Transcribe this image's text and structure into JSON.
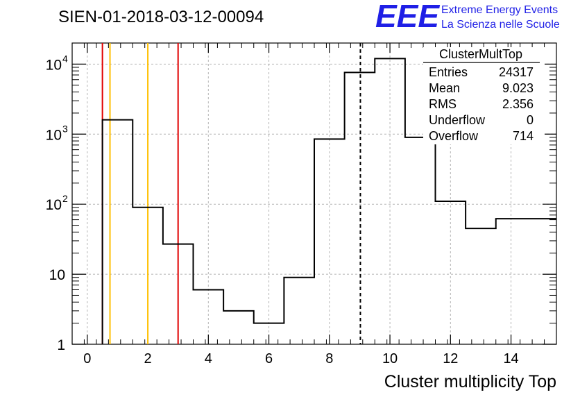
{
  "chart_data": {
    "type": "histogram",
    "title": "SIEN-01-2018-03-12-00094",
    "xlabel": "Cluster multiplicity Top",
    "ylabel": "",
    "xlim": [
      -0.5,
      15.5
    ],
    "ylim": [
      1,
      20000
    ],
    "yscale": "log",
    "grid": true,
    "x_ticks": [
      0,
      2,
      4,
      6,
      8,
      10,
      12,
      14
    ],
    "y_ticks": [
      {
        "value": 1,
        "label": "1"
      },
      {
        "value": 10,
        "label": "10"
      },
      {
        "value": 100,
        "label": "10",
        "exp": "2"
      },
      {
        "value": 1000,
        "label": "10",
        "exp": "3"
      },
      {
        "value": 10000,
        "label": "10",
        "exp": "4"
      }
    ],
    "bins": [
      {
        "low": 0.5,
        "high": 1.5,
        "value": 1600
      },
      {
        "low": 1.5,
        "high": 2.5,
        "value": 90
      },
      {
        "low": 2.5,
        "high": 3.5,
        "value": 27
      },
      {
        "low": 3.5,
        "high": 4.5,
        "value": 6
      },
      {
        "low": 4.5,
        "high": 5.5,
        "value": 3
      },
      {
        "low": 5.5,
        "high": 6.5,
        "value": 2
      },
      {
        "low": 6.5,
        "high": 7.5,
        "value": 9
      },
      {
        "low": 7.5,
        "high": 8.5,
        "value": 850
      },
      {
        "low": 8.5,
        "high": 9.5,
        "value": 7600
      },
      {
        "low": 9.5,
        "high": 10.5,
        "value": 12000
      },
      {
        "low": 10.5,
        "high": 11.5,
        "value": 900
      },
      {
        "low": 11.5,
        "high": 12.5,
        "value": 110
      },
      {
        "low": 12.5,
        "high": 13.5,
        "value": 45
      },
      {
        "low": 13.5,
        "high": 14.5,
        "value": 62
      },
      {
        "low": 14.5,
        "high": 15.5,
        "value": 62
      }
    ],
    "vertical_lines": [
      {
        "x": 0.5,
        "color": "#e00000",
        "style": "solid"
      },
      {
        "x": 0.75,
        "color": "#ffbf00",
        "style": "solid"
      },
      {
        "x": 2.0,
        "color": "#ffbf00",
        "style": "solid"
      },
      {
        "x": 3.0,
        "color": "#e00000",
        "style": "solid"
      },
      {
        "x": 9.023,
        "color": "#000000",
        "style": "dashed"
      }
    ],
    "stats_box": {
      "title": "ClusterMultTop",
      "rows": [
        {
          "label": "Entries",
          "value": "24317"
        },
        {
          "label": "Mean",
          "value": "9.023"
        },
        {
          "label": "RMS",
          "value": "2.356"
        },
        {
          "label": "Underflow",
          "value": "0"
        },
        {
          "label": "Overflow",
          "value": "714"
        }
      ]
    }
  },
  "logo": {
    "letters": "EEE",
    "line1": "Extreme Energy Events",
    "line2": "La Scienza nelle Scuole",
    "color": "#1f1fe6"
  }
}
